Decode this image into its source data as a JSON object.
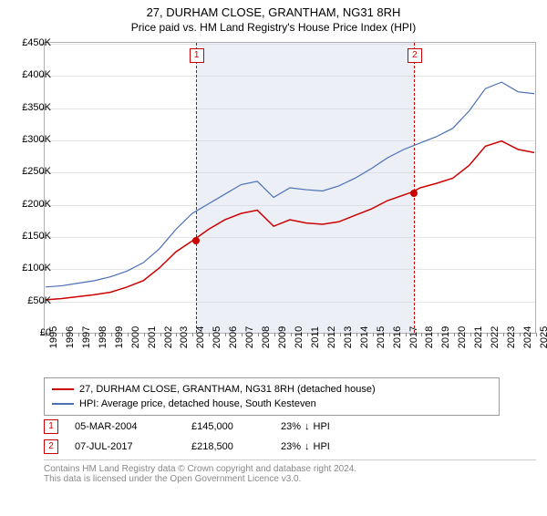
{
  "header": {
    "title": "27, DURHAM CLOSE, GRANTHAM, NG31 8RH",
    "subtitle": "Price paid vs. HM Land Registry's House Price Index (HPI)"
  },
  "chart": {
    "type": "line",
    "background_color": "#ffffff",
    "grid_color": "#e5e5e5",
    "border_color": "#b0b0b0",
    "y": {
      "min": 0,
      "max": 450000,
      "tick_step": 50000,
      "ticks": [
        "£0",
        "£50K",
        "£100K",
        "£150K",
        "£200K",
        "£250K",
        "£300K",
        "£350K",
        "£400K",
        "£450K"
      ]
    },
    "x": {
      "min": 1995,
      "max": 2025,
      "years": [
        1995,
        1996,
        1997,
        1998,
        1999,
        2000,
        2001,
        2002,
        2003,
        2004,
        2005,
        2006,
        2007,
        2008,
        2009,
        2010,
        2011,
        2012,
        2013,
        2014,
        2015,
        2016,
        2017,
        2018,
        2019,
        2020,
        2021,
        2022,
        2023,
        2024,
        2025
      ]
    },
    "shade": {
      "from_year": 2004.18,
      "to_year": 2017.52,
      "color": "rgba(200,210,230,0.35)"
    },
    "series": [
      {
        "name": "price_paid",
        "label": "27, DURHAM CLOSE, GRANTHAM, NG31 8RH (detached house)",
        "color": "#cc0000",
        "line_width": 1.5,
        "values": [
          [
            1995,
            50000
          ],
          [
            1996,
            52000
          ],
          [
            1997,
            55000
          ],
          [
            1998,
            58000
          ],
          [
            1999,
            62000
          ],
          [
            2000,
            70000
          ],
          [
            2001,
            80000
          ],
          [
            2002,
            100000
          ],
          [
            2003,
            125000
          ],
          [
            2004.18,
            145000
          ],
          [
            2005,
            160000
          ],
          [
            2006,
            175000
          ],
          [
            2007,
            185000
          ],
          [
            2008,
            190000
          ],
          [
            2009,
            165000
          ],
          [
            2010,
            175000
          ],
          [
            2011,
            170000
          ],
          [
            2012,
            168000
          ],
          [
            2013,
            172000
          ],
          [
            2014,
            182000
          ],
          [
            2015,
            192000
          ],
          [
            2016,
            205000
          ],
          [
            2017.52,
            218500
          ],
          [
            2018,
            225000
          ],
          [
            2019,
            232000
          ],
          [
            2020,
            240000
          ],
          [
            2021,
            260000
          ],
          [
            2022,
            290000
          ],
          [
            2023,
            298000
          ],
          [
            2024,
            285000
          ],
          [
            2025,
            280000
          ]
        ]
      },
      {
        "name": "hpi",
        "label": "HPI: Average price, detached house, South Kesteven",
        "color": "#4a6fb5",
        "line_width": 1.2,
        "values": [
          [
            1995,
            70000
          ],
          [
            1996,
            72000
          ],
          [
            1997,
            76000
          ],
          [
            1998,
            80000
          ],
          [
            1999,
            86000
          ],
          [
            2000,
            95000
          ],
          [
            2001,
            108000
          ],
          [
            2002,
            130000
          ],
          [
            2003,
            160000
          ],
          [
            2004,
            185000
          ],
          [
            2005,
            200000
          ],
          [
            2006,
            215000
          ],
          [
            2007,
            230000
          ],
          [
            2008,
            235000
          ],
          [
            2009,
            210000
          ],
          [
            2010,
            225000
          ],
          [
            2011,
            222000
          ],
          [
            2012,
            220000
          ],
          [
            2013,
            228000
          ],
          [
            2014,
            240000
          ],
          [
            2015,
            255000
          ],
          [
            2016,
            272000
          ],
          [
            2017,
            285000
          ],
          [
            2018,
            295000
          ],
          [
            2019,
            305000
          ],
          [
            2020,
            318000
          ],
          [
            2021,
            345000
          ],
          [
            2022,
            380000
          ],
          [
            2023,
            390000
          ],
          [
            2024,
            375000
          ],
          [
            2025,
            372000
          ]
        ]
      }
    ],
    "markers": [
      {
        "id": "1",
        "year": 2004.18,
        "value": 145000,
        "color": "#cc0000"
      },
      {
        "id": "2",
        "year": 2017.52,
        "value": 218500,
        "color": "#cc0000"
      }
    ]
  },
  "legend": {
    "items": [
      {
        "color": "#cc0000",
        "text": "27, DURHAM CLOSE, GRANTHAM, NG31 8RH (detached house)"
      },
      {
        "color": "#4a6fb5",
        "text": "HPI: Average price, detached house, South Kesteven"
      }
    ]
  },
  "events": [
    {
      "id": "1",
      "date": "05-MAR-2004",
      "price": "£145,000",
      "pct": "23%",
      "arrow": "↓",
      "vs": "HPI"
    },
    {
      "id": "2",
      "date": "07-JUL-2017",
      "price": "£218,500",
      "pct": "23%",
      "arrow": "↓",
      "vs": "HPI"
    }
  ],
  "footer": {
    "line1": "Contains HM Land Registry data © Crown copyright and database right 2024.",
    "line2": "This data is licensed under the Open Government Licence v3.0."
  }
}
